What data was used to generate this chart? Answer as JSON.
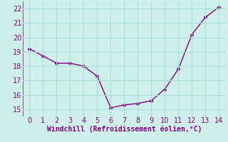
{
  "x": [
    0,
    1,
    2,
    3,
    4,
    5,
    6,
    7,
    8,
    9,
    10,
    11,
    12,
    13,
    14
  ],
  "y": [
    19.2,
    18.7,
    18.2,
    18.2,
    18.0,
    17.3,
    15.1,
    15.3,
    15.4,
    15.6,
    16.4,
    17.8,
    20.2,
    21.4,
    22.1
  ],
  "xlim": [
    -0.5,
    14.5
  ],
  "ylim": [
    14.5,
    22.5
  ],
  "xticks": [
    0,
    1,
    2,
    3,
    4,
    5,
    6,
    7,
    8,
    9,
    10,
    11,
    12,
    13,
    14
  ],
  "yticks": [
    15,
    16,
    17,
    18,
    19,
    20,
    21,
    22
  ],
  "xlabel": "Windchill (Refroidissement éolien,°C)",
  "line_color": "#800080",
  "marker": "D",
  "marker_size": 2.5,
  "bg_color": "#cff0ea",
  "grid_color": "#aadddd",
  "tick_label_color": "#800080",
  "xlabel_color": "#800080",
  "line_width": 1.0,
  "tick_fontsize": 7,
  "xlabel_fontsize": 7
}
